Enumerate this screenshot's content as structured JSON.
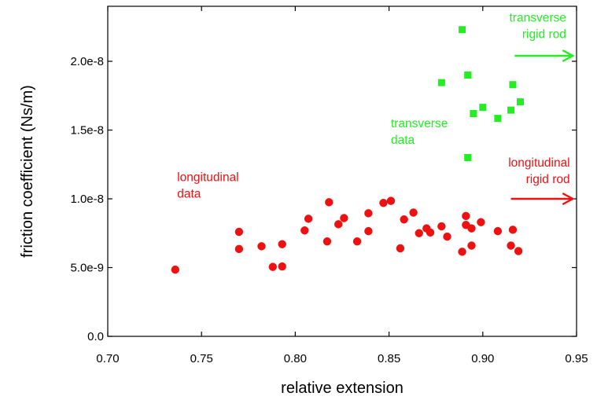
{
  "chart_data": {
    "type": "scatter",
    "xlabel": "relative extension",
    "ylabel": "friction coefficient (Ns/m)",
    "xlim": [
      0.7,
      0.95
    ],
    "ylim": [
      0.0,
      2.4e-08
    ],
    "x_ticks": [
      "0.70",
      "0.75",
      "0.80",
      "0.85",
      "0.90",
      "0.95"
    ],
    "x_tick_values": [
      0.7,
      0.75,
      0.8,
      0.85,
      0.9,
      0.95
    ],
    "y_ticks": [
      "0.0",
      "5.0e-9",
      "1.0e-8",
      "1.5e-8",
      "2.0e-8"
    ],
    "y_tick_values": [
      0.0,
      5e-09,
      1e-08,
      1.5e-08,
      2e-08
    ],
    "grid": false,
    "series": [
      {
        "key": "longitudinal",
        "marker": "circle",
        "color": "#ee1111",
        "points": [
          [
            0.736,
            4.85e-09
          ],
          [
            0.77,
            7.6e-09
          ],
          [
            0.77,
            6.35e-09
          ],
          [
            0.782,
            6.55e-09
          ],
          [
            0.788,
            5.05e-09
          ],
          [
            0.793,
            6.7e-09
          ],
          [
            0.793,
            5.08e-09
          ],
          [
            0.805,
            7.7e-09
          ],
          [
            0.807,
            8.55e-09
          ],
          [
            0.817,
            6.9e-09
          ],
          [
            0.818,
            9.75e-09
          ],
          [
            0.823,
            8.15e-09
          ],
          [
            0.826,
            8.6e-09
          ],
          [
            0.833,
            6.9e-09
          ],
          [
            0.839,
            7.65e-09
          ],
          [
            0.839,
            8.95e-09
          ],
          [
            0.847,
            9.7e-09
          ],
          [
            0.851,
            9.85e-09
          ],
          [
            0.856,
            6.4e-09
          ],
          [
            0.858,
            8.5e-09
          ],
          [
            0.863,
            9e-09
          ],
          [
            0.866,
            7.5e-09
          ],
          [
            0.87,
            7.85e-09
          ],
          [
            0.872,
            7.55e-09
          ],
          [
            0.878,
            8e-09
          ],
          [
            0.881,
            7.25e-09
          ],
          [
            0.889,
            6.15e-09
          ],
          [
            0.891,
            8.75e-09
          ],
          [
            0.891,
            8.1e-09
          ],
          [
            0.894,
            7.85e-09
          ],
          [
            0.894,
            6.6e-09
          ],
          [
            0.899,
            8.3e-09
          ],
          [
            0.908,
            7.65e-09
          ],
          [
            0.915,
            6.6e-09
          ],
          [
            0.916,
            7.75e-09
          ],
          [
            0.919,
            6.2e-09
          ]
        ]
      },
      {
        "key": "transverse",
        "marker": "square",
        "color": "#22ee22",
        "points": [
          [
            0.878,
            1.845e-08
          ],
          [
            0.889,
            2.23e-08
          ],
          [
            0.892,
            1.9e-08
          ],
          [
            0.892,
            1.3e-08
          ],
          [
            0.895,
            1.62e-08
          ],
          [
            0.9,
            1.665e-08
          ],
          [
            0.908,
            1.585e-08
          ],
          [
            0.915,
            1.645e-08
          ],
          [
            0.916,
            1.83e-08
          ],
          [
            0.92,
            1.705e-08
          ]
        ]
      }
    ],
    "annotations": [
      {
        "key": "longitudinal_data",
        "lines": [
          "longitudinal",
          "data"
        ],
        "color": "#ee1111",
        "anchor_x": 0.737,
        "anchor_y": 1.13e-08
      },
      {
        "key": "transverse_data",
        "lines": [
          "transverse",
          "data"
        ],
        "color": "#22ee22",
        "anchor_x": 0.851,
        "anchor_y": 1.52e-08
      },
      {
        "key": "transverse_rigid_rod",
        "lines": [
          "transverse",
          "rigid rod"
        ],
        "color": "#22ee22",
        "anchor_x": 0.9445,
        "anchor_y": 2.29e-08,
        "align": "end"
      },
      {
        "key": "longitudinal_rigid_rod",
        "lines": [
          "longitudinal",
          "rigid rod"
        ],
        "color": "#ee1111",
        "anchor_x": 0.9465,
        "anchor_y": 1.235e-08,
        "align": "end"
      }
    ],
    "reference_arrows": [
      {
        "key": "transverse_rigid_rod_arrow",
        "color": "#22ee22",
        "x_from": 0.917,
        "x_to": 0.948,
        "y": 2.04e-08
      },
      {
        "key": "longitudinal_rigid_rod_arrow",
        "color": "#ee1111",
        "x_from": 0.915,
        "x_to": 0.948,
        "y": 1e-08
      }
    ]
  }
}
